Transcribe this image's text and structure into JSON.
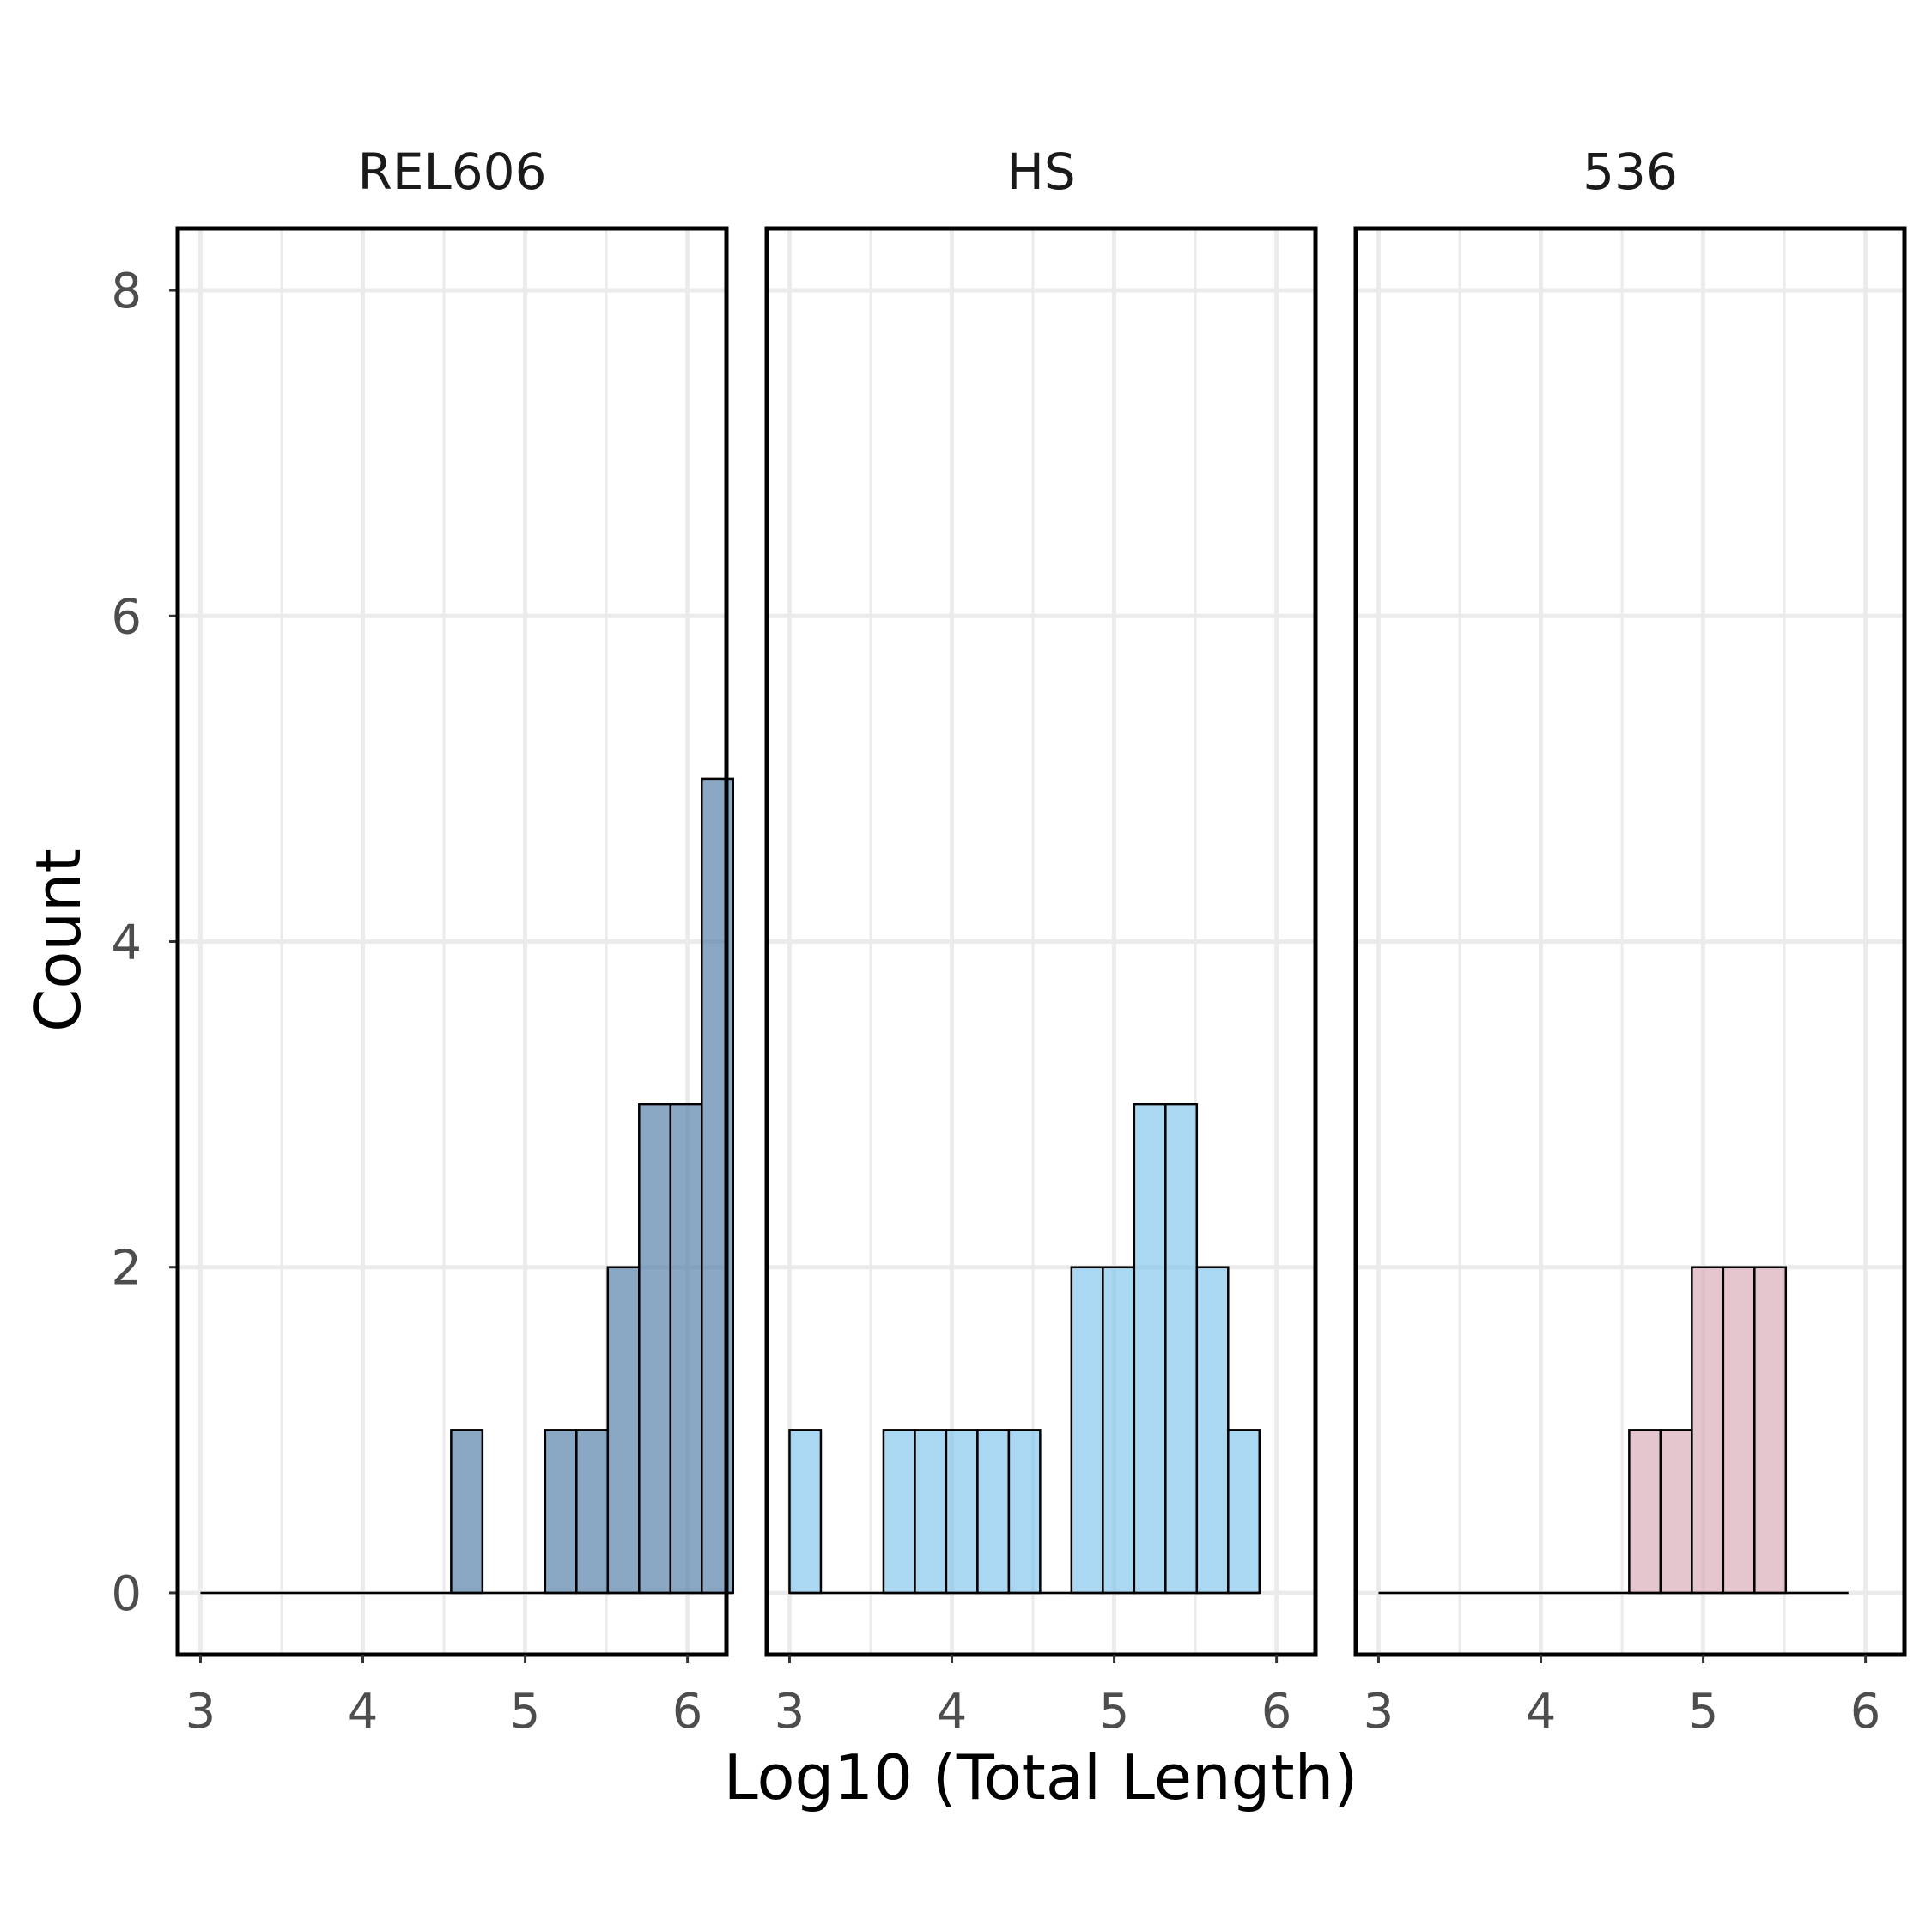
{
  "chart_data": {
    "type": "bar",
    "subtype": "faceted-histogram",
    "xlabel": "Log10 (Total Length)",
    "ylabel": "Count",
    "xlim": [
      2.86,
      6.24
    ],
    "ylim": [
      -0.38,
      8.38
    ],
    "xticks": [
      3,
      4,
      5,
      6
    ],
    "yticks": [
      0,
      2,
      4,
      6,
      8
    ],
    "bin_width": 0.193,
    "bin_start": 3.0,
    "grid": true,
    "legend": "none",
    "panels": [
      {
        "title": "REL606",
        "color": "#4b78a3",
        "bin_counts": [
          0,
          0,
          0,
          0,
          0,
          0,
          0,
          0,
          1,
          0,
          0,
          1,
          1,
          2,
          3,
          3,
          5
        ],
        "baseline_end_bin": 17
      },
      {
        "title": "HS",
        "color": "#7dc3ec",
        "bin_counts": [
          1,
          0,
          0,
          1,
          1,
          1,
          1,
          1,
          0,
          2,
          2,
          3,
          3,
          2,
          1
        ],
        "baseline_end_bin": 15
      },
      {
        "title": "536",
        "color": "#d8a7b3",
        "bin_counts": [
          0,
          0,
          0,
          0,
          0,
          0,
          0,
          0,
          1,
          1,
          2,
          2,
          2,
          0,
          0
        ],
        "baseline_end_bin": 15
      }
    ]
  }
}
